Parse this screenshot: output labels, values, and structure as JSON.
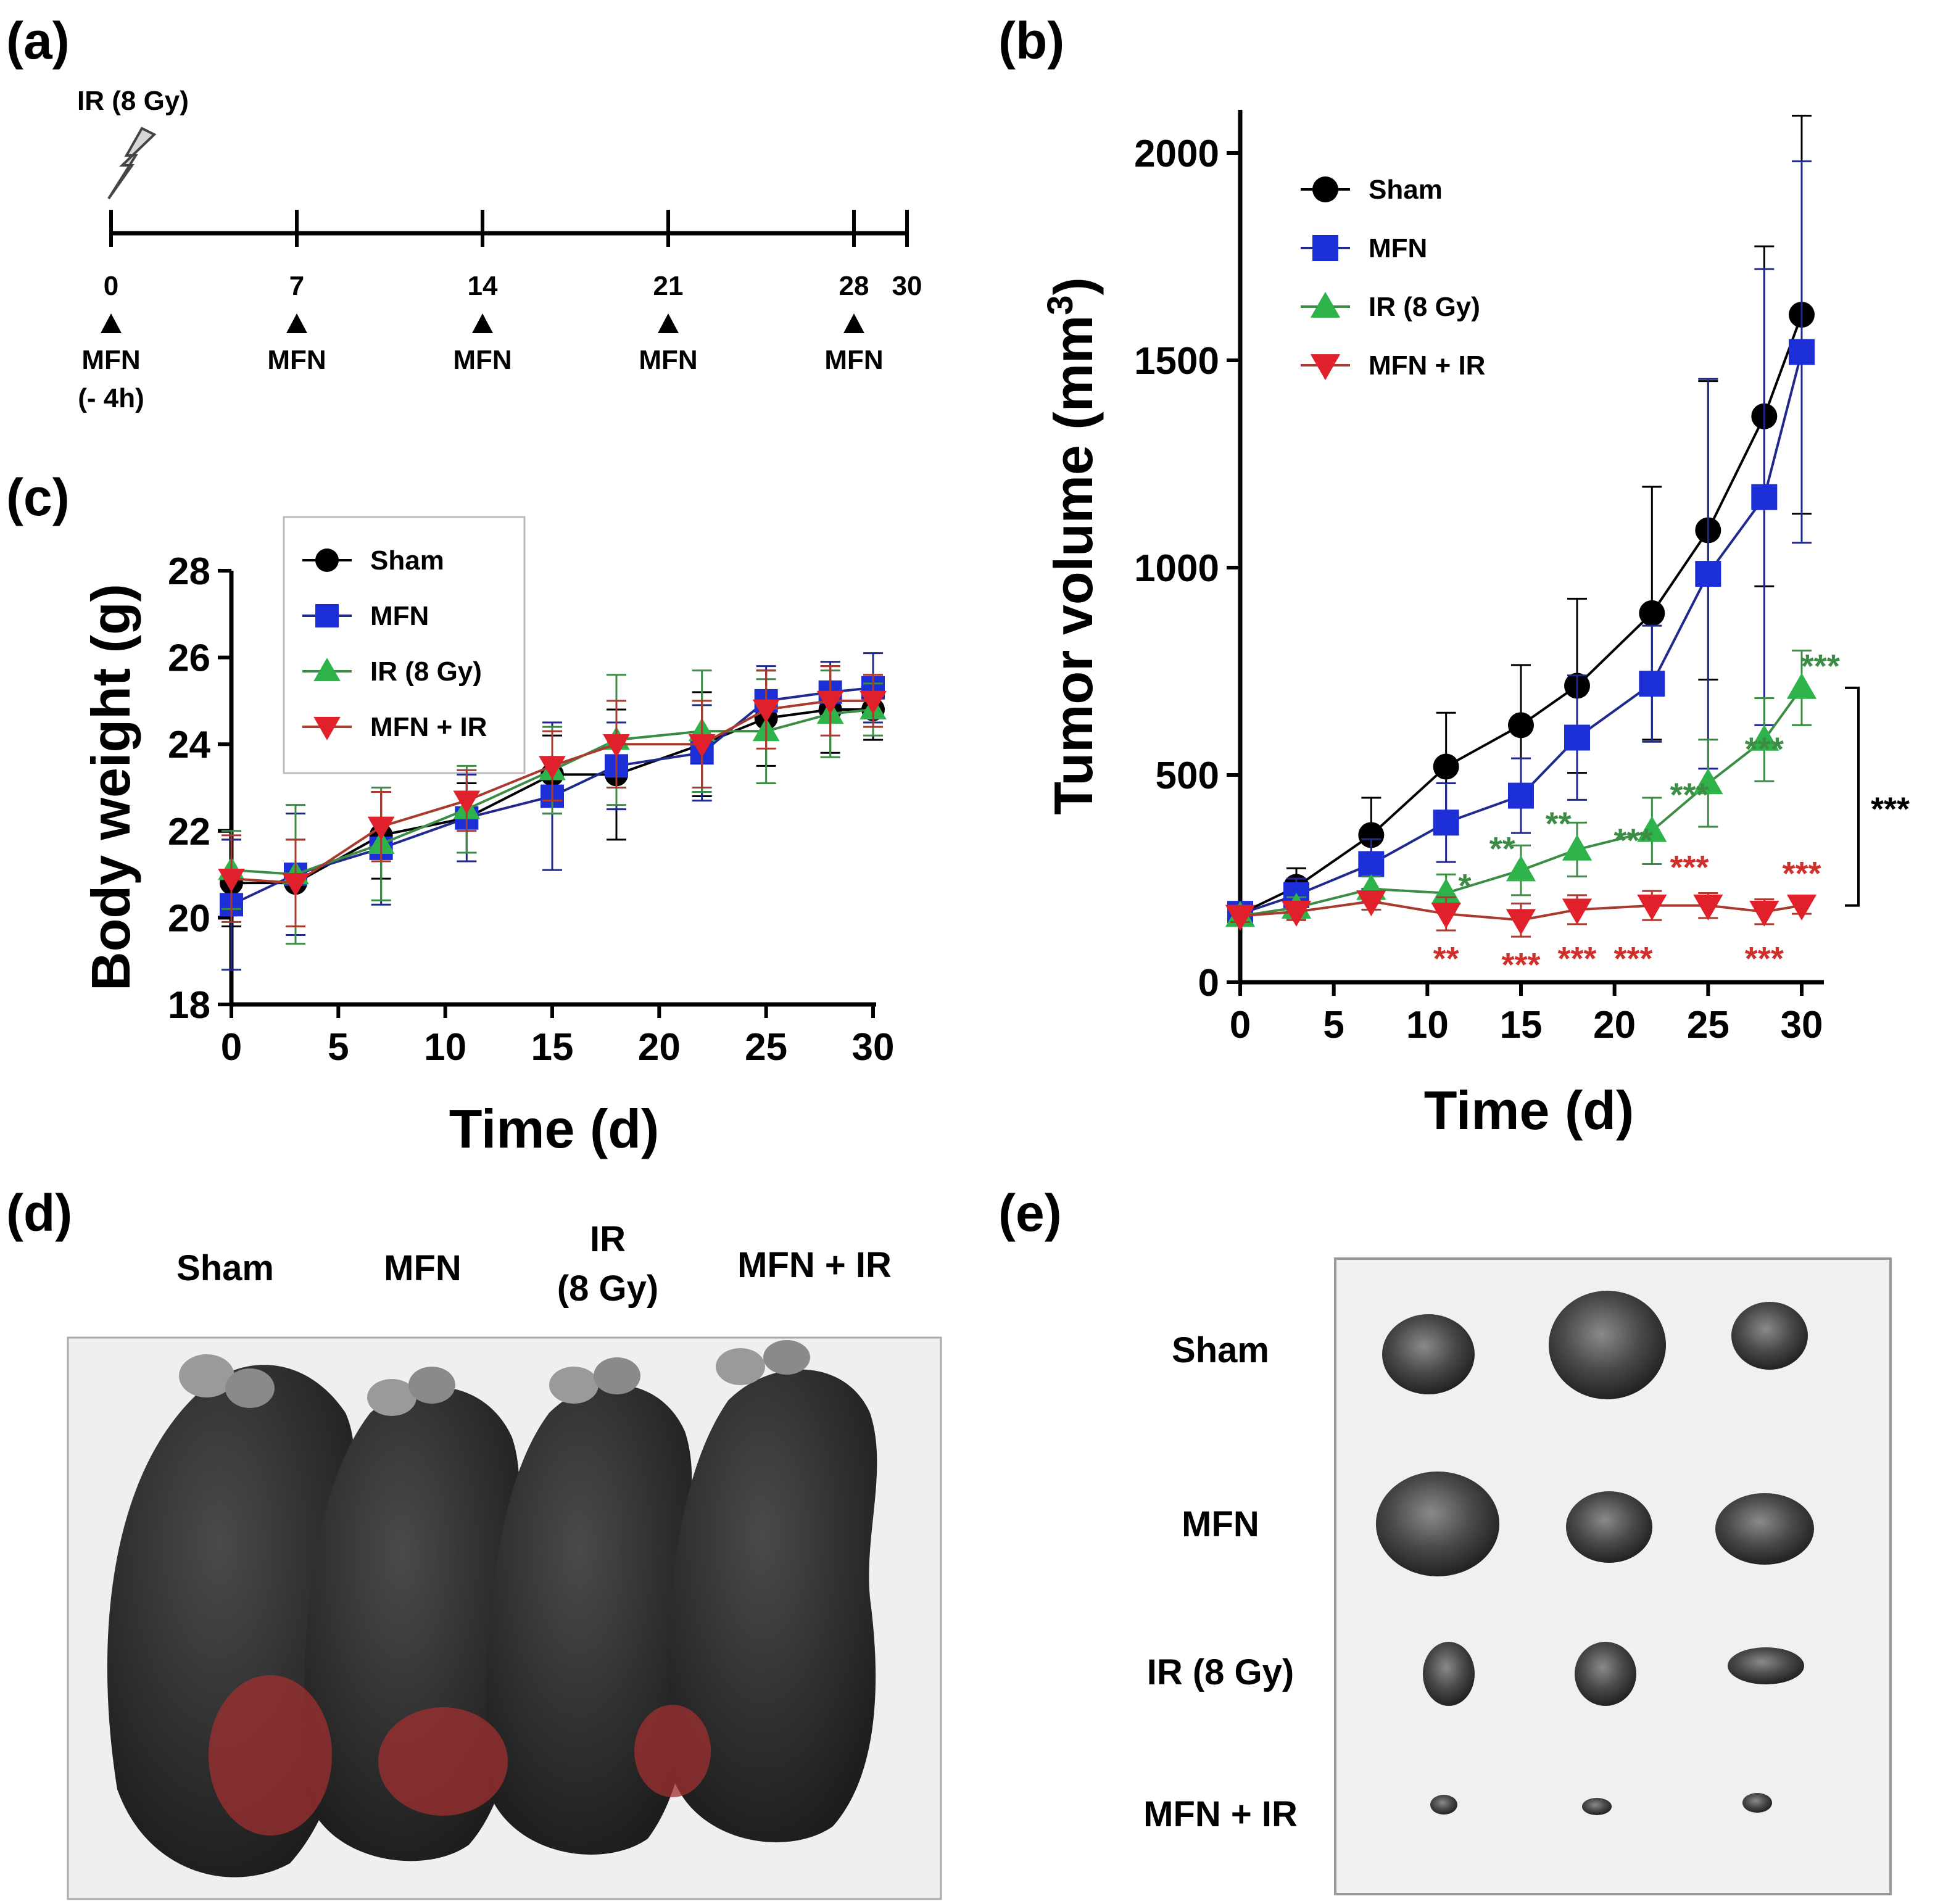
{
  "panel_labels": {
    "a": "(a)",
    "b": "(b)",
    "c": "(c)",
    "d": "(d)",
    "e": "(e)"
  },
  "timeline": {
    "ir_label": "IR (8 Gy)",
    "days": [
      "0",
      "7",
      "14",
      "21",
      "28",
      "30"
    ],
    "injections": [
      "MFN",
      "MFN",
      "MFN",
      "MFN",
      "MFN"
    ],
    "first_note": "(- 4h)"
  },
  "series_colors": {
    "Sham": "#000000",
    "MFN": "#1c2fd6",
    "IR (8 Gy)": "#2db34a",
    "MFN + IR": "#e0202a"
  },
  "line_colors": {
    "Sham": "#000000",
    "MFN": "#1f2a8c",
    "IR (8 Gy)": "#3d8c45",
    "MFN + IR": "#a83a30"
  },
  "chart_data": [
    {
      "id": "tumor-volume",
      "panel": "(b)",
      "type": "line",
      "xlabel": "Time (d)",
      "ylabel_main": "Tumor volume (mm",
      "ylabel_sup": "3",
      "ylabel_close": ")",
      "xlim": [
        0,
        30
      ],
      "ylim": [
        0,
        2000
      ],
      "xticks": [
        "0",
        "5",
        "10",
        "15",
        "20",
        "25",
        "30"
      ],
      "yticks": [
        "0",
        "500",
        "1000",
        "1500",
        "2000"
      ],
      "x": [
        0,
        3,
        7,
        11,
        15,
        18,
        22,
        25,
        28,
        30
      ],
      "legend_position": "top-left",
      "series": [
        {
          "name": "Sham",
          "marker": "circle",
          "values": [
            165,
            230,
            355,
            520,
            620,
            715,
            890,
            1090,
            1365,
            1610
          ],
          "err": [
            25,
            45,
            90,
            130,
            145,
            210,
            305,
            360,
            410,
            480
          ]
        },
        {
          "name": "MFN",
          "marker": "square",
          "values": [
            165,
            210,
            285,
            385,
            450,
            590,
            720,
            985,
            1170,
            1520
          ],
          "err": [
            20,
            40,
            60,
            95,
            90,
            150,
            140,
            470,
            550,
            460
          ]
        },
        {
          "name": "IR (8 Gy)",
          "marker": "triangle-up",
          "values": [
            160,
            180,
            225,
            215,
            270,
            320,
            365,
            480,
            585,
            710
          ],
          "err": [
            15,
            25,
            30,
            45,
            60,
            65,
            80,
            105,
            100,
            90
          ]
        },
        {
          "name": "MFN + IR",
          "marker": "triangle-down",
          "values": [
            160,
            170,
            195,
            165,
            150,
            175,
            185,
            185,
            170,
            185
          ],
          "err": [
            15,
            20,
            20,
            40,
            40,
            35,
            35,
            30,
            30,
            20
          ]
        }
      ],
      "annotations": {
        "ir": [
          {
            "x": 12,
            "y": 205,
            "text": "*"
          },
          {
            "x": 14,
            "y": 295,
            "text": "**"
          },
          {
            "x": 17,
            "y": 355,
            "text": "**"
          },
          {
            "x": 21,
            "y": 315,
            "text": "***"
          },
          {
            "x": 24,
            "y": 425,
            "text": "***"
          },
          {
            "x": 28,
            "y": 535,
            "text": "***"
          },
          {
            "x": 31,
            "y": 735,
            "text": "***"
          }
        ],
        "combo": [
          {
            "x": 11,
            "y": 30,
            "text": "**"
          },
          {
            "x": 15,
            "y": 15,
            "text": "***"
          },
          {
            "x": 18,
            "y": 30,
            "text": "***"
          },
          {
            "x": 21,
            "y": 30,
            "text": "***"
          },
          {
            "x": 24,
            "y": 250,
            "text": "***"
          },
          {
            "x": 28,
            "y": 30,
            "text": "***"
          },
          {
            "x": 30,
            "y": 235,
            "text": "***"
          }
        ],
        "bracket": {
          "y_top": 710,
          "y_bottom": 185,
          "text": "***"
        }
      }
    },
    {
      "id": "body-weight",
      "panel": "(c)",
      "type": "line",
      "xlabel": "Time (d)",
      "ylabel": "Body weight (g)",
      "xlim": [
        0,
        30
      ],
      "ylim": [
        18,
        28
      ],
      "xticks": [
        "0",
        "5",
        "10",
        "15",
        "20",
        "25",
        "30"
      ],
      "yticks": [
        "18",
        "20",
        "22",
        "24",
        "26",
        "28"
      ],
      "x": [
        0,
        3,
        7,
        11,
        15,
        18,
        22,
        25,
        28,
        30
      ],
      "legend_position": "top-left",
      "series": [
        {
          "name": "Sham",
          "marker": "circle",
          "values": [
            20.8,
            20.8,
            21.9,
            22.3,
            23.3,
            23.3,
            24.0,
            24.6,
            24.8,
            24.8
          ],
          "err": [
            1.0,
            1.0,
            1.0,
            0.8,
            0.9,
            1.5,
            1.2,
            1.1,
            1.0,
            0.7
          ]
        },
        {
          "name": "MFN",
          "marker": "square",
          "values": [
            20.3,
            21.0,
            21.6,
            22.3,
            22.8,
            23.5,
            23.8,
            25.0,
            25.2,
            25.3
          ],
          "err": [
            1.5,
            1.4,
            1.3,
            1.0,
            1.7,
            1.0,
            1.1,
            0.8,
            0.7,
            0.8
          ]
        },
        {
          "name": "IR (8 Gy)",
          "marker": "triangle-up",
          "values": [
            21.1,
            21.0,
            21.7,
            22.5,
            23.4,
            24.1,
            24.3,
            24.3,
            24.7,
            24.8
          ],
          "err": [
            0.9,
            1.6,
            1.3,
            1.0,
            1.0,
            1.5,
            1.4,
            1.2,
            1.0,
            0.6
          ]
        },
        {
          "name": "MFN + IR",
          "marker": "triangle-down",
          "values": [
            20.9,
            20.8,
            22.1,
            22.7,
            23.5,
            24.0,
            24.0,
            24.8,
            25.0,
            25.0
          ],
          "err": [
            1.0,
            1.0,
            0.8,
            0.7,
            0.8,
            1.0,
            1.0,
            0.9,
            0.8,
            0.6
          ]
        }
      ]
    }
  ],
  "photo_d": {
    "groups": [
      "Sham",
      "MFN",
      "IR",
      "(8 Gy)",
      "MFN + IR"
    ]
  },
  "photo_e": {
    "rows": [
      "Sham",
      "MFN",
      "IR (8 Gy)",
      "MFN + IR"
    ]
  }
}
